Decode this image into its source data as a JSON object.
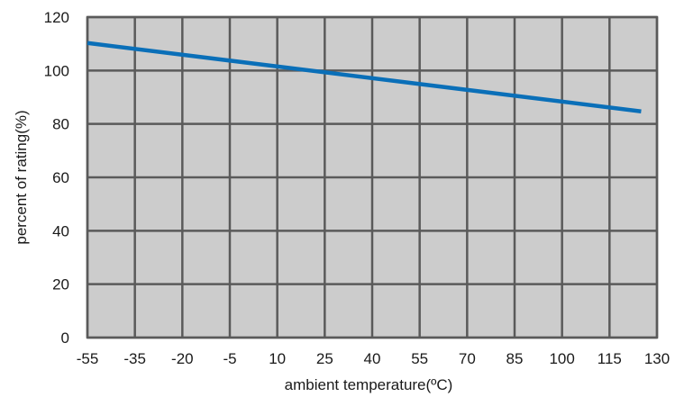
{
  "chart_data": {
    "type": "line",
    "title": "",
    "xlabel": "ambient temperature(ºC)",
    "ylabel": "percent of rating(%)",
    "x_ticks": [
      -55,
      -35,
      -20,
      -5,
      10,
      25,
      40,
      55,
      70,
      85,
      100,
      115,
      130
    ],
    "x_tick_labels": [
      "-55",
      "-35",
      "-20",
      "-5",
      "10",
      "25",
      "40",
      "55",
      "70",
      "85",
      "100",
      "115",
      "130"
    ],
    "y_ticks": [
      0,
      20,
      40,
      60,
      80,
      100,
      120
    ],
    "y_tick_labels": [
      "0",
      "20",
      "40",
      "60",
      "80",
      "100",
      "120"
    ],
    "xlim": [
      -55,
      130
    ],
    "ylim": [
      0,
      120
    ],
    "grid": true,
    "legend": "none",
    "colors": {
      "plot_background": "#cccccc",
      "grid": "#5a5a5a",
      "line": "#0a6fb8"
    },
    "series": [
      {
        "values_x": [
          -55,
          125
        ],
        "values_y": [
          110.3,
          84.7
        ]
      }
    ]
  }
}
